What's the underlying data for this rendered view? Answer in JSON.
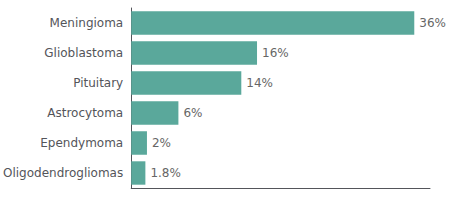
{
  "chart_data": {
    "type": "bar",
    "orientation": "horizontal",
    "categories": [
      "Meningioma",
      "Glioblastoma",
      "Pituitary",
      "Astrocytoma",
      "Ependymoma",
      "Oligodendrogliomas"
    ],
    "values": [
      36,
      16,
      14,
      6,
      2,
      1.8
    ],
    "value_labels": [
      "36%",
      "16%",
      "14%",
      "6%",
      "2%",
      "1.8%"
    ],
    "color": "#5aa89b",
    "xlim": [
      0,
      38
    ],
    "grid": false,
    "data_labels": true,
    "tick_labels": "y"
  }
}
